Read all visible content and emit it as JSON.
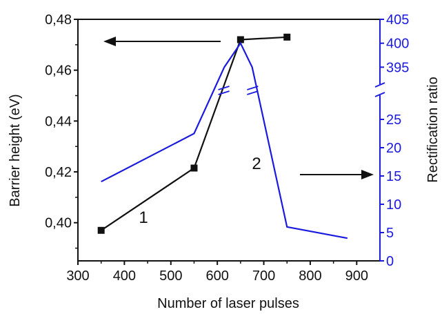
{
  "chart_data": {
    "type": "line",
    "title": "",
    "xlabel": "Number of laser pulses",
    "ylabel_left": "Barrier height (eV)",
    "ylabel_right": "Rectification ratio",
    "x_range": [
      300,
      950
    ],
    "x_ticks": [
      "300",
      "400",
      "500",
      "600",
      "700",
      "800",
      "900"
    ],
    "y_left_range": [
      0.385,
      0.48
    ],
    "y_left_ticks": [
      "0,40",
      "0,42",
      "0,44",
      "0,46",
      "0,48"
    ],
    "y_right_lower_range": [
      0,
      30
    ],
    "y_right_lower_ticks": [
      "0",
      "5",
      "10",
      "15",
      "20",
      "25"
    ],
    "y_right_upper_range": [
      390,
      405
    ],
    "y_right_upper_ticks": [
      "395",
      "400",
      "405"
    ],
    "right_axis_broken": true,
    "grid": false,
    "colors": {
      "barrier": "#111111",
      "ratio": "#1a1adf",
      "axis_left": "#111111",
      "axis_right": "#1a1adf"
    },
    "series": [
      {
        "label": "1",
        "axis": "left",
        "marker": "square",
        "x": [
          350,
          550,
          650,
          750
        ],
        "y": [
          0.397,
          0.4215,
          0.472,
          0.473
        ]
      },
      {
        "label": "2",
        "axis": "right",
        "marker": "none",
        "x": [
          350,
          550,
          615,
          650,
          675,
          750,
          880
        ],
        "y": [
          14,
          22.5,
          395,
          400,
          395,
          6,
          4
        ]
      }
    ],
    "annotations": [
      {
        "type": "arrow",
        "direction": "left",
        "meaning": "curve 1 refers to left axis"
      },
      {
        "type": "arrow",
        "direction": "right",
        "meaning": "curve 2 refers to right axis"
      }
    ]
  }
}
